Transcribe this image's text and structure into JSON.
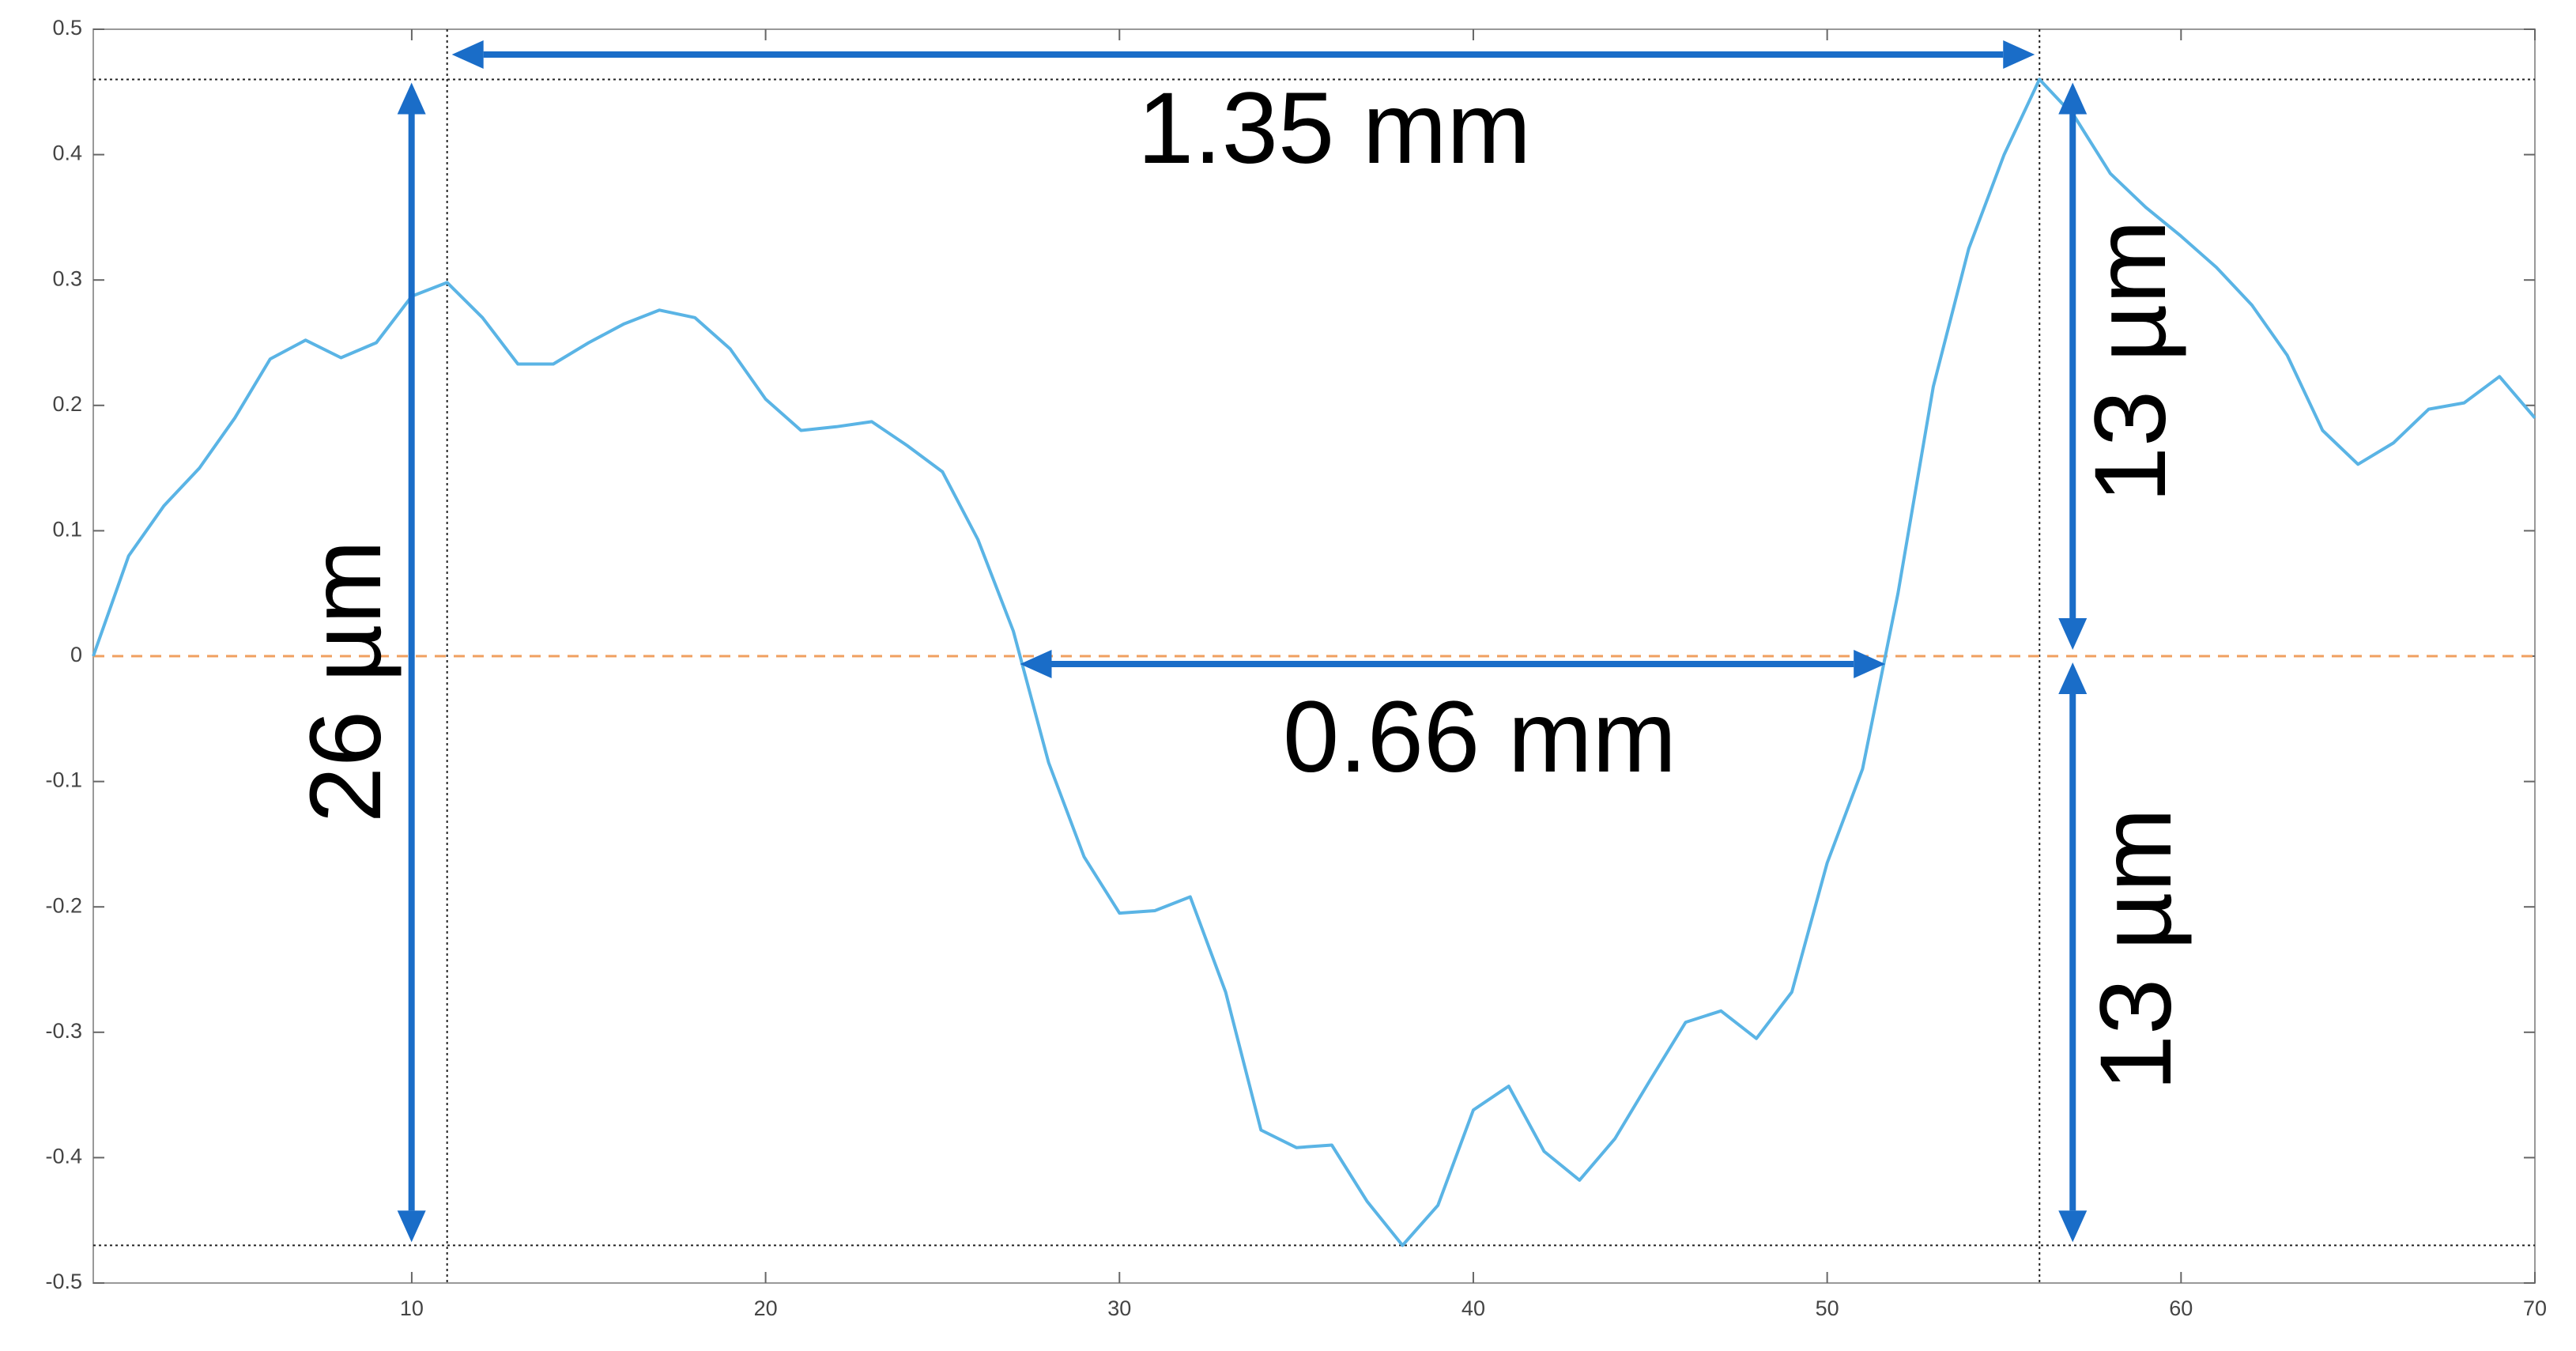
{
  "chart_data": {
    "type": "line",
    "x": [
      1,
      2,
      3,
      4,
      5,
      6,
      7,
      8,
      9,
      10,
      11,
      12,
      13,
      14,
      15,
      16,
      17,
      18,
      19,
      20,
      21,
      22,
      23,
      24,
      25,
      26,
      27,
      28,
      29,
      30,
      31,
      32,
      33,
      34,
      35,
      36,
      37,
      38,
      39,
      40,
      41,
      42,
      43,
      44,
      45,
      46,
      47,
      48,
      49,
      50,
      51,
      52,
      53,
      54,
      55,
      56,
      57,
      58,
      59,
      60,
      61,
      62,
      63,
      64,
      65,
      66,
      67,
      68,
      69,
      70
    ],
    "values": [
      0.0,
      0.08,
      0.12,
      0.15,
      0.19,
      0.237,
      0.252,
      0.238,
      0.25,
      0.287,
      0.298,
      0.27,
      0.233,
      0.233,
      0.25,
      0.265,
      0.276,
      0.27,
      0.245,
      0.205,
      0.18,
      0.183,
      0.187,
      0.168,
      0.147,
      0.093,
      0.02,
      -0.085,
      -0.16,
      -0.205,
      -0.203,
      -0.192,
      -0.268,
      -0.378,
      -0.392,
      -0.39,
      -0.435,
      -0.47,
      -0.438,
      -0.362,
      -0.343,
      -0.395,
      -0.418,
      -0.385,
      -0.338,
      -0.292,
      -0.283,
      -0.305,
      -0.268,
      -0.165,
      -0.09,
      0.05,
      0.215,
      0.325,
      0.4,
      0.46,
      0.43,
      0.385,
      0.358,
      0.335,
      0.31,
      0.28,
      0.24,
      0.18,
      0.153,
      0.17,
      0.197,
      0.202,
      0.223,
      0.19
    ],
    "color": "#5ab4e5",
    "xlim": [
      1,
      70
    ],
    "xticks": [
      10,
      20,
      30,
      40,
      50,
      60,
      70
    ],
    "ylim": [
      -0.5,
      0.5
    ],
    "yticks": [
      -0.5,
      -0.4,
      -0.3,
      -0.2,
      -0.1,
      0,
      0.1,
      0.2,
      0.3,
      0.4,
      0.5
    ],
    "baseline": 0,
    "baseline_color": "#f0a060",
    "hlines": [
      0.46,
      -0.47
    ],
    "vlines": [
      11,
      56
    ],
    "arrow_color": "#1a6dc8",
    "annotations": [
      "1.35 mm",
      "0.66 mm",
      "26 µm",
      "13 µm",
      "13 µm"
    ]
  }
}
